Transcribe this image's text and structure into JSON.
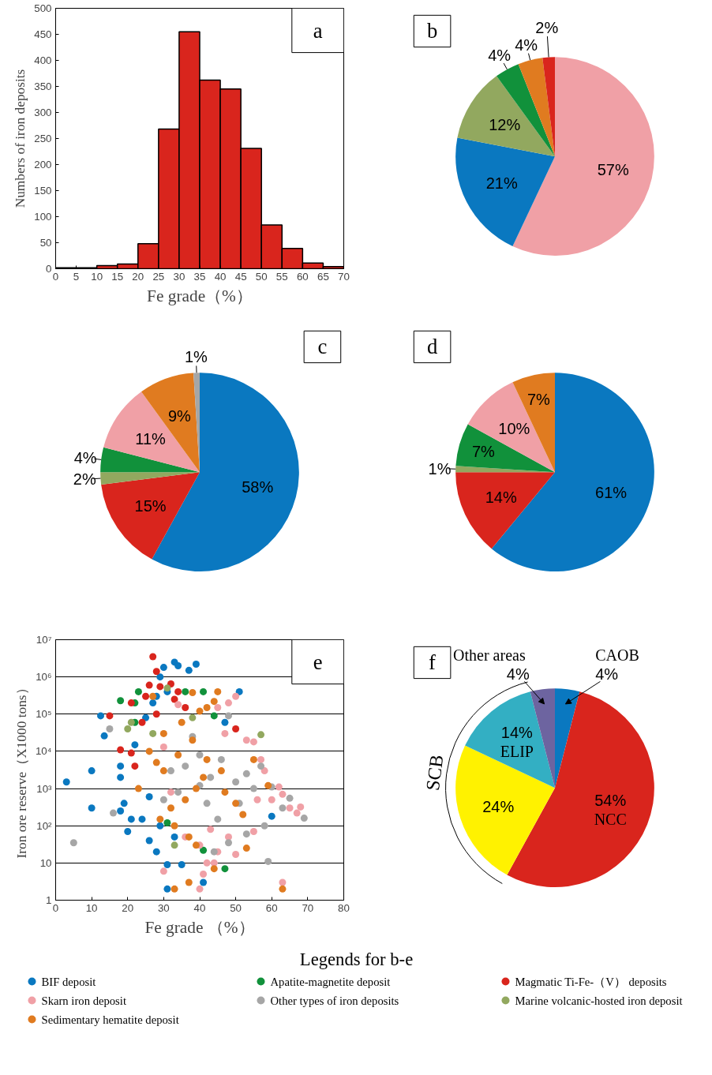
{
  "chart_data": [
    {
      "type": "histogram",
      "xlabel": "Fe grade（%）",
      "ylabel": "Numbers of iron deposits",
      "annotations": [
        "a"
      ],
      "bins": [
        0,
        5,
        10,
        15,
        20,
        25,
        30,
        35,
        40,
        45,
        50,
        55,
        60,
        65,
        70
      ],
      "values": [
        2,
        2,
        6,
        9,
        48,
        268,
        455,
        362,
        345,
        231,
        84,
        39,
        11,
        4
      ],
      "color": "#d9251d",
      "xlim": [
        0,
        70
      ],
      "xticks": [
        0,
        5,
        10,
        15,
        20,
        25,
        30,
        35,
        40,
        45,
        50,
        55,
        60,
        65,
        70
      ],
      "ylim": [
        0,
        500
      ],
      "yticks": [
        0,
        50,
        100,
        150,
        200,
        250,
        300,
        350,
        400,
        450,
        500
      ],
      "grid": false
    },
    {
      "type": "pie",
      "annotations": [
        "b"
      ],
      "categories": [
        null,
        null,
        null,
        null,
        null,
        null
      ],
      "values": [
        57,
        21,
        12,
        4,
        4,
        2
      ],
      "colors": [
        "#f0a0a6",
        "#0a78c0",
        "#92a85f",
        "#11913b",
        "#e07b20",
        "#d9251d"
      ],
      "value_labels": [
        "57%",
        "21%",
        "12%",
        "4%",
        "4%",
        "2%"
      ]
    },
    {
      "type": "pie",
      "annotations": [
        "c"
      ],
      "categories": [
        null,
        null,
        null,
        null,
        null,
        null,
        null
      ],
      "values": [
        58,
        15,
        2,
        4,
        11,
        9,
        1
      ],
      "colors": [
        "#0a78c0",
        "#d9251d",
        "#92a85f",
        "#11913b",
        "#f0a0a6",
        "#e07b20",
        "#a6a6a6"
      ],
      "value_labels": [
        "58%",
        "15%",
        "2%",
        "4%",
        "11%",
        "9%",
        "1%"
      ]
    },
    {
      "type": "pie",
      "annotations": [
        "d"
      ],
      "categories": [
        null,
        null,
        null,
        null,
        null,
        null
      ],
      "values": [
        61,
        14,
        1,
        7,
        10,
        7
      ],
      "colors": [
        "#0a78c0",
        "#d9251d",
        "#92a85f",
        "#11913b",
        "#f0a0a6",
        "#e07b20"
      ],
      "value_labels": [
        "61%",
        "14%",
        "1%",
        "7%",
        "10%",
        "7%"
      ]
    },
    {
      "type": "scatter",
      "xlabel": "Fe grade （%）",
      "ylabel": "Iron ore reserve（X1000 tons）",
      "annotations": [
        "e"
      ],
      "log": "y",
      "grid": "y",
      "marker": "circle",
      "legend": "bottom",
      "legend_title": "Legends for b-e",
      "xlim": [
        0,
        80
      ],
      "xticks": [
        0,
        10,
        20,
        30,
        40,
        50,
        60,
        70,
        80
      ],
      "ylim": [
        1,
        10000000
      ],
      "yticks": [
        1,
        10,
        {
          "value": 100,
          "label": "10²"
        },
        {
          "value": 1000,
          "label": "10³"
        },
        {
          "value": 10000,
          "label": "10⁴"
        },
        {
          "value": 100000,
          "label": "10⁵"
        },
        {
          "value": 1000000,
          "label": "10⁶"
        },
        {
          "value": 10000000,
          "label": "10⁷"
        }
      ],
      "series": [
        {
          "name": "BIF deposit",
          "color": "#0a78c0",
          "x": [
            3,
            10,
            10,
            12.5,
            13.5,
            18,
            18,
            19,
            18,
            20,
            21,
            22,
            25,
            27,
            28,
            29,
            30,
            31,
            33,
            34,
            37,
            39,
            51,
            26,
            28,
            31,
            35,
            31,
            41,
            26,
            24,
            29,
            33,
            47,
            60
          ],
          "values": [
            1500,
            3000,
            300,
            90000,
            26000,
            4000,
            2000,
            400,
            250,
            70,
            150,
            15000,
            80000,
            200000,
            300000,
            1000000,
            1800000,
            400000,
            2500000,
            2000000,
            1500000,
            2200000,
            400000,
            40,
            20,
            9,
            9,
            2,
            3,
            600,
            150,
            100,
            50,
            60000,
            180
          ]
        },
        {
          "name": "Apatite-magnetite deposit",
          "color": "#11913b",
          "x": [
            18,
            22,
            23,
            22,
            36,
            41,
            31,
            41,
            47,
            44
          ],
          "values": [
            230000,
            200000,
            400000,
            60000,
            400000,
            400000,
            120,
            22,
            7,
            90000
          ]
        },
        {
          "name": "Magmatic  Ti-Fe-（V） deposits",
          "color": "#d9251d",
          "x": [
            27,
            28,
            26,
            25,
            29,
            32,
            21,
            15,
            18,
            21,
            24,
            22,
            34,
            36,
            33,
            28,
            50
          ],
          "values": [
            3500000,
            1400000,
            600000,
            300000,
            550000,
            650000,
            200000,
            90000,
            11000,
            9000,
            60000,
            4000,
            400000,
            150000,
            250000,
            100000,
            40000
          ]
        },
        {
          "name": "Skarn iron deposit",
          "color": "#f0a0a6",
          "x": [
            30,
            40,
            41,
            42,
            44,
            50,
            55,
            62,
            63,
            65,
            67,
            68,
            63,
            58,
            50,
            48,
            45,
            53,
            55,
            57,
            47,
            34,
            30,
            32,
            36,
            40,
            43,
            48,
            56,
            60,
            45
          ],
          "values": [
            6,
            2,
            5,
            10,
            10,
            17,
            70,
            1100,
            700,
            300,
            220,
            320,
            3,
            3000,
            300000,
            200000,
            150000,
            20000,
            18000,
            6000,
            30000,
            180000,
            13000,
            800,
            50,
            30,
            80,
            50,
            500,
            500,
            20
          ]
        },
        {
          "name": "Other types of iron deposits",
          "color": "#a6a6a6",
          "x": [
            5,
            16,
            15,
            30,
            32,
            36,
            40,
            38,
            43,
            46,
            48,
            50,
            53,
            55,
            57,
            60,
            65,
            69,
            63,
            58,
            59,
            44,
            48,
            53,
            34,
            42,
            40,
            51,
            45
          ],
          "values": [
            35,
            220,
            40000,
            500,
            3000,
            4000,
            8000,
            25000,
            2000,
            6000,
            90000,
            1500,
            2500,
            1000,
            4000,
            1100,
            550,
            160,
            300,
            100,
            11,
            20,
            35,
            60,
            800,
            400,
            1200,
            400,
            150
          ]
        },
        {
          "name": "Marine volcanic-hosted iron deposit",
          "color": "#92a85f",
          "x": [
            31,
            20,
            21,
            33,
            57,
            38,
            27
          ],
          "values": [
            500000,
            40000,
            60000,
            30,
            28000,
            80000,
            30000
          ]
        },
        {
          "name": "Sedimentary hematite deposit",
          "color": "#e07b20",
          "x": [
            27,
            38,
            45,
            44,
            42,
            40,
            35,
            30,
            26,
            28,
            30,
            34,
            38,
            42,
            46,
            39,
            36,
            32,
            29,
            41,
            47,
            50,
            52,
            33,
            37,
            39,
            44,
            37,
            33,
            63,
            53,
            59,
            23,
            55
          ],
          "values": [
            300000,
            380000,
            400000,
            220000,
            150000,
            120000,
            60000,
            30000,
            10000,
            5000,
            3000,
            8000,
            20000,
            6000,
            3000,
            1000,
            500,
            300,
            150,
            2000,
            800,
            400,
            200,
            100,
            50,
            30,
            7,
            3,
            2,
            2,
            25,
            1200,
            1000,
            6000
          ]
        }
      ]
    },
    {
      "type": "pie",
      "annotations": [
        "f",
        "SCB"
      ],
      "categories": [
        "CAOB",
        "NCC",
        null,
        "ELIP",
        "Other  areas"
      ],
      "values": [
        4,
        54,
        24,
        14,
        4
      ],
      "colors": [
        "#0a78c0",
        "#d9251d",
        "#fff200",
        "#33afc3",
        "#6d64a0"
      ],
      "value_labels": [
        "4%",
        "54%",
        "24%",
        "14%",
        "4%"
      ]
    }
  ]
}
